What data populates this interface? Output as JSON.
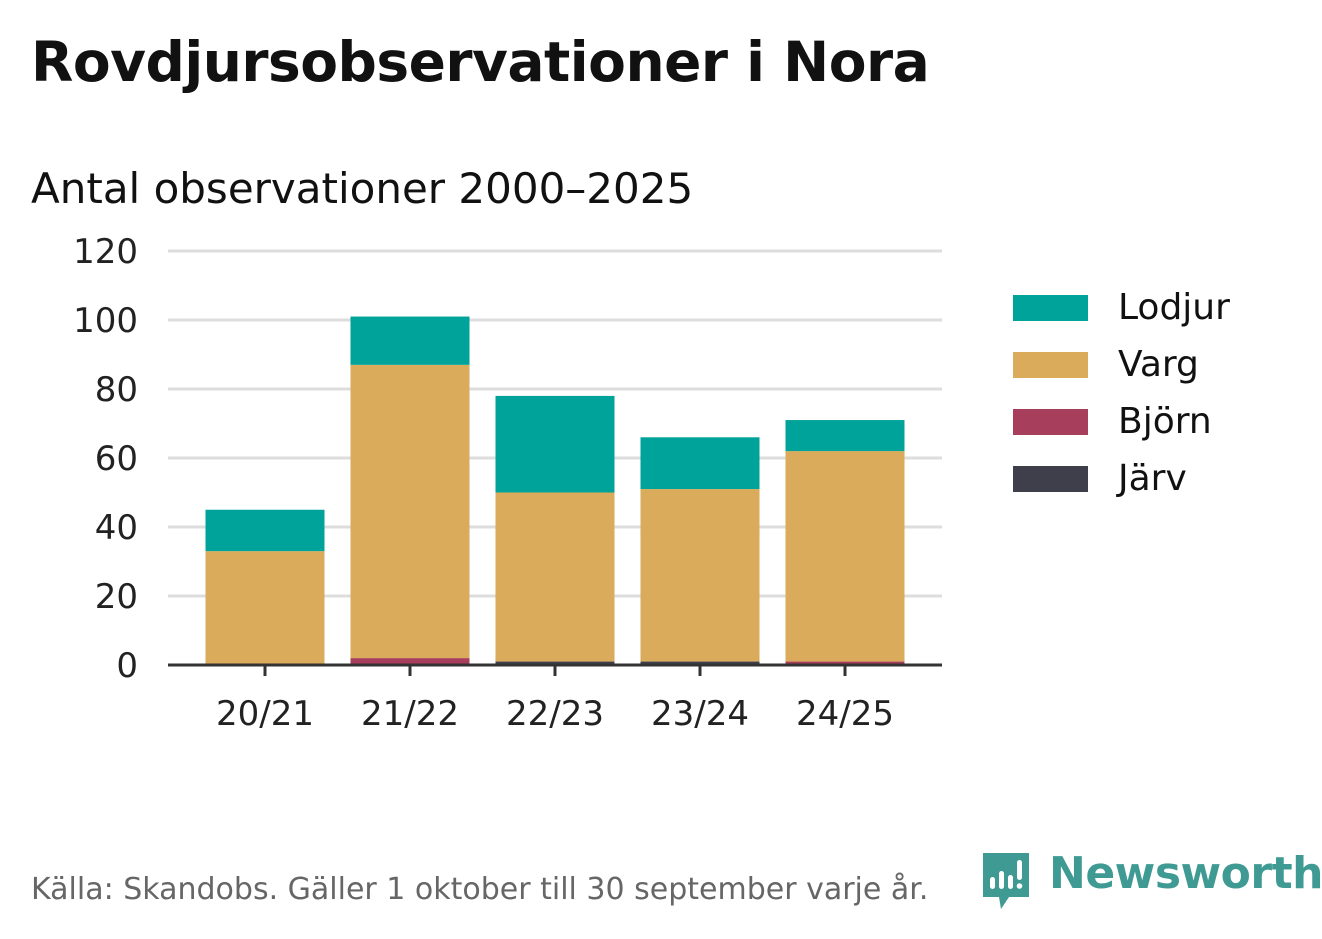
{
  "title": "Rovdjursobservationer i Nora",
  "subtitle": "Antal observationer 2000–2025",
  "source": "Källa: Skandobs. Gäller 1 oktober till 30 september varje år.",
  "brand": "Newsworthy",
  "colors": {
    "Lodjur": "#00a39a",
    "Varg": "#d9ab5b",
    "Björn": "#a63e5c",
    "Järv": "#3f3f4c",
    "grid": "#dddddd",
    "axis": "#333333",
    "brand": "#3e9a93"
  },
  "chart_data": {
    "type": "bar",
    "stacked": true,
    "categories": [
      "20/21",
      "21/22",
      "22/23",
      "23/24",
      "24/25"
    ],
    "series": [
      {
        "name": "Järv",
        "values": [
          0,
          0,
          1,
          1,
          0
        ]
      },
      {
        "name": "Björn",
        "values": [
          0,
          2,
          0,
          0,
          1
        ]
      },
      {
        "name": "Varg",
        "values": [
          33,
          85,
          49,
          50,
          61
        ]
      },
      {
        "name": "Lodjur",
        "values": [
          12,
          14,
          28,
          15,
          9
        ]
      }
    ],
    "ylim": [
      0,
      120
    ],
    "yticks": [
      0,
      20,
      40,
      60,
      80,
      100,
      120
    ],
    "grid": true,
    "legend": [
      "Lodjur",
      "Varg",
      "Björn",
      "Järv"
    ],
    "legend_position": "right"
  }
}
